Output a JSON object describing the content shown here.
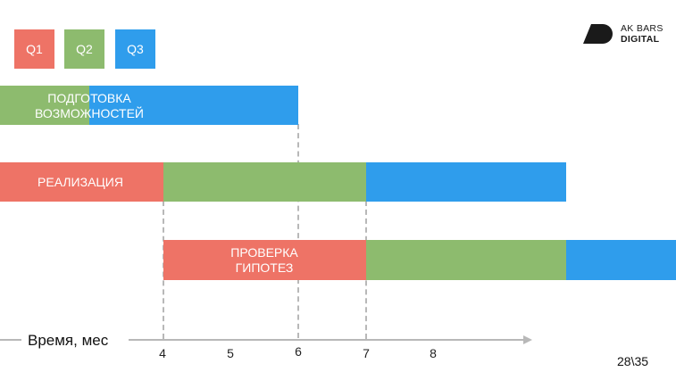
{
  "legend": [
    {
      "label": "Q1",
      "color": "#EE7366"
    },
    {
      "label": "Q2",
      "color": "#8DBB6E"
    },
    {
      "label": "Q3",
      "color": "#2F9DEC"
    }
  ],
  "logo": {
    "line1": "AK BARS",
    "line2": "DIGITAL"
  },
  "rows": [
    {
      "label": "ПОДГОТОВКА ВОЗМОЖНОСТЕЙ",
      "label_lines": [
        "ПОДГОТОВКА",
        "ВОЗМОЖНОСТЕЙ"
      ]
    },
    {
      "label": "РЕАЛИЗАЦИЯ",
      "label_lines": [
        "РЕАЛИЗАЦИЯ"
      ]
    },
    {
      "label": "ПРОВЕРКА ГИПОТЕЗ",
      "label_lines": [
        "ПРОВЕРКА",
        "ГИПОТЕЗ"
      ]
    }
  ],
  "axis": {
    "label": "Время, мес",
    "ticks": [
      "4",
      "5",
      "6",
      "7",
      "8"
    ]
  },
  "page_number": "28\\35"
}
